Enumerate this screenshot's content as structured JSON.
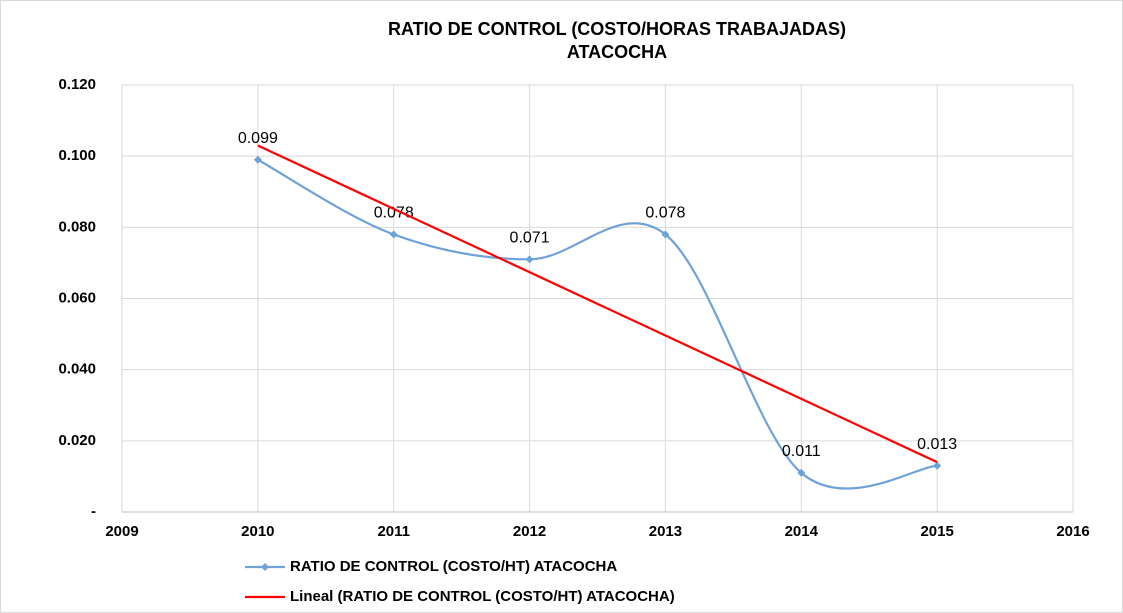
{
  "chart_data": {
    "type": "line",
    "title": "RATIO DE CONTROL (COSTO/HORAS TRABAJADAS)",
    "subtitle": "ATACOCHA",
    "series": [
      {
        "name": "RATIO DE CONTROL (COSTO/HT) ATACOCHA",
        "color": "#6fa2d8",
        "smooth": true,
        "markers": true,
        "data_labels": true,
        "x": [
          2010,
          2011,
          2012,
          2013,
          2014,
          2015
        ],
        "values": [
          0.099,
          0.078,
          0.071,
          0.078,
          0.011,
          0.013
        ]
      },
      {
        "name": "Lineal (RATIO DE CONTROL (COSTO/HT) ATACOCHA)",
        "color": "#ff0000",
        "smooth": false,
        "markers": false,
        "data_labels": false,
        "x": [
          2010,
          2015
        ],
        "values": [
          0.103,
          0.014
        ]
      }
    ],
    "xlim": [
      2009,
      2016
    ],
    "xticks": [
      2009,
      2010,
      2011,
      2012,
      2013,
      2014,
      2015,
      2016
    ],
    "ylim": [
      0,
      0.12
    ],
    "yticks": [
      {
        "value": 0,
        "label": "-"
      },
      {
        "value": 0.02,
        "label": "0.020"
      },
      {
        "value": 0.04,
        "label": "0.040"
      },
      {
        "value": 0.06,
        "label": "0.060"
      },
      {
        "value": 0.08,
        "label": "0.080"
      },
      {
        "value": 0.1,
        "label": "0.100"
      },
      {
        "value": 0.12,
        "label": "0.120"
      }
    ],
    "grid": true,
    "legend": "bottom"
  }
}
